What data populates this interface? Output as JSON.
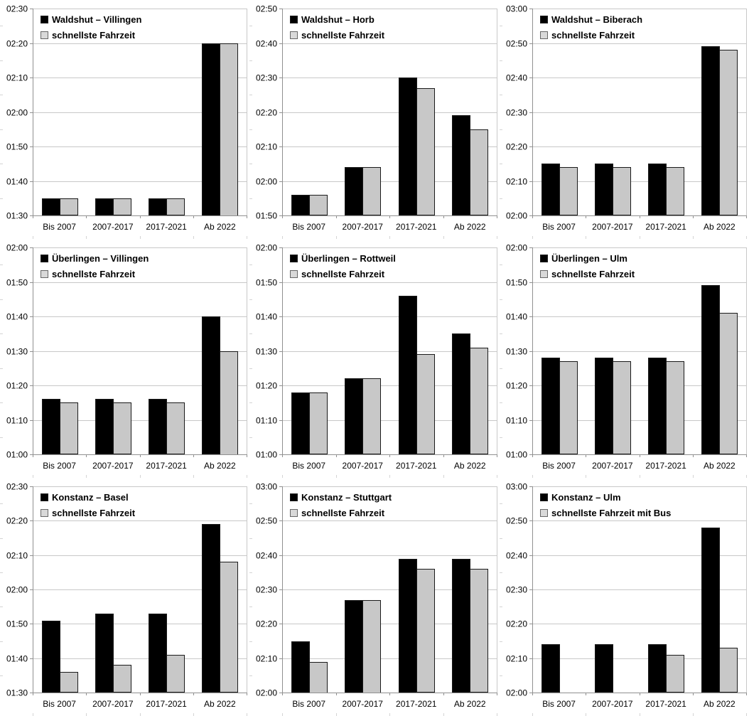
{
  "page": {
    "description": "3x3 grid of bar charts comparing scheduled vs fastest rail travel times (hh:mm) between city pairs across four timetable periods"
  },
  "style": {
    "background": "#ffffff",
    "bar_black": "#000000",
    "bar_gray": "#c8c8c8",
    "bar_border": "#1a1a1a",
    "grid_line": "#c8c8c8",
    "frame_line": "#c8c8c8",
    "axis_line": "#909090",
    "edge_mark": "#d4d4d4",
    "legend_symbol_black": "#000000",
    "legend_symbol_gray": "#d9d9d9",
    "legend_symbol_border": "#666666",
    "text_color": "#000000"
  },
  "chart_data": [
    {
      "type": "bar",
      "title": "Waldshut – Villingen",
      "categories": [
        "Bis 2007",
        "2007-2017",
        "2017-2021",
        "Ab 2022"
      ],
      "series": [
        {
          "name": "Waldshut – Villingen",
          "values": [
            "01:35",
            "01:35",
            "01:35",
            "02:20"
          ]
        },
        {
          "name": "schnellste Fahrzeit",
          "values": [
            "01:35",
            "01:35",
            "01:35",
            "02:20"
          ]
        }
      ],
      "ylim": [
        "01:30",
        "02:30"
      ],
      "y_major_interval_minutes": 10,
      "y_minor_interval_minutes": 5,
      "grid": "horizontal",
      "legend_position": "top-left-inside"
    },
    {
      "type": "bar",
      "title": "Waldshut – Horb",
      "categories": [
        "Bis 2007",
        "2007-2017",
        "2017-2021",
        "Ab 2022"
      ],
      "series": [
        {
          "name": "Waldshut – Horb",
          "values": [
            "01:56",
            "02:04",
            "02:30",
            "02:19"
          ]
        },
        {
          "name": "schnellste Fahrzeit",
          "values": [
            "01:56",
            "02:04",
            "02:27",
            "02:15"
          ]
        }
      ],
      "ylim": [
        "01:50",
        "02:50"
      ],
      "y_major_interval_minutes": 10,
      "y_minor_interval_minutes": 5,
      "grid": "horizontal",
      "legend_position": "top-left-inside"
    },
    {
      "type": "bar",
      "title": "Waldshut – Biberach",
      "categories": [
        "Bis 2007",
        "2007-2017",
        "2017-2021",
        "Ab 2022"
      ],
      "series": [
        {
          "name": "Waldshut – Biberach",
          "values": [
            "02:15",
            "02:15",
            "02:15",
            "02:49"
          ]
        },
        {
          "name": "schnellste Fahrzeit",
          "values": [
            "02:14",
            "02:14",
            "02:14",
            "02:48"
          ]
        }
      ],
      "ylim": [
        "02:00",
        "03:00"
      ],
      "y_major_interval_minutes": 10,
      "y_minor_interval_minutes": 5,
      "grid": "horizontal",
      "legend_position": "top-left-inside"
    },
    {
      "type": "bar",
      "title": "Überlingen – Villingen",
      "categories": [
        "Bis 2007",
        "2007-2017",
        "2017-2021",
        "Ab 2022"
      ],
      "series": [
        {
          "name": "Überlingen – Villingen",
          "values": [
            "01:16",
            "01:16",
            "01:16",
            "01:40"
          ]
        },
        {
          "name": "schnellste Fahrzeit",
          "values": [
            "01:15",
            "01:15",
            "01:15",
            "01:30"
          ]
        }
      ],
      "ylim": [
        "01:00",
        "02:00"
      ],
      "y_major_interval_minutes": 10,
      "y_minor_interval_minutes": 5,
      "grid": "horizontal",
      "legend_position": "top-left-inside"
    },
    {
      "type": "bar",
      "title": "Überlingen – Rottweil",
      "categories": [
        "Bis 2007",
        "2007-2017",
        "2017-2021",
        "Ab 2022"
      ],
      "series": [
        {
          "name": "Überlingen – Rottweil",
          "values": [
            "01:18",
            "01:22",
            "01:46",
            "01:35"
          ]
        },
        {
          "name": "schnellste Fahrzeit",
          "values": [
            "01:18",
            "01:22",
            "01:29",
            "01:31"
          ]
        }
      ],
      "ylim": [
        "01:00",
        "02:00"
      ],
      "y_major_interval_minutes": 10,
      "y_minor_interval_minutes": 5,
      "grid": "horizontal",
      "legend_position": "top-left-inside"
    },
    {
      "type": "bar",
      "title": "Überlingen – Ulm",
      "categories": [
        "Bis 2007",
        "2007-2017",
        "2017-2021",
        "Ab 2022"
      ],
      "series": [
        {
          "name": "Überlingen – Ulm",
          "values": [
            "01:28",
            "01:28",
            "01:28",
            "01:49"
          ]
        },
        {
          "name": "schnellste Fahrzeit",
          "values": [
            "01:27",
            "01:27",
            "01:27",
            "01:41"
          ]
        }
      ],
      "ylim": [
        "01:00",
        "02:00"
      ],
      "y_major_interval_minutes": 10,
      "y_minor_interval_minutes": 5,
      "grid": "horizontal",
      "legend_position": "top-left-inside"
    },
    {
      "type": "bar",
      "title": "Konstanz – Basel",
      "categories": [
        "Bis 2007",
        "2007-2017",
        "2017-2021",
        "Ab 2022"
      ],
      "series": [
        {
          "name": "Konstanz – Basel",
          "values": [
            "01:51",
            "01:53",
            "01:53",
            "02:19"
          ]
        },
        {
          "name": "schnellste Fahrzeit",
          "values": [
            "01:36",
            "01:38",
            "01:41",
            "02:08"
          ]
        }
      ],
      "ylim": [
        "01:30",
        "02:30"
      ],
      "y_major_interval_minutes": 10,
      "y_minor_interval_minutes": 5,
      "grid": "horizontal",
      "legend_position": "top-left-inside"
    },
    {
      "type": "bar",
      "title": "Konstanz – Stuttgart",
      "categories": [
        "Bis 2007",
        "2007-2017",
        "2017-2021",
        "Ab 2022"
      ],
      "series": [
        {
          "name": "Konstanz – Stuttgart",
          "values": [
            "02:15",
            "02:27",
            "02:39",
            "02:39"
          ]
        },
        {
          "name": "schnellste Fahrzeit",
          "values": [
            "02:09",
            "02:27",
            "02:36",
            "02:36"
          ]
        }
      ],
      "ylim": [
        "02:00",
        "03:00"
      ],
      "y_major_interval_minutes": 10,
      "y_minor_interval_minutes": 5,
      "grid": "horizontal",
      "legend_position": "top-left-inside"
    },
    {
      "type": "bar",
      "title": "Konstanz – Ulm",
      "categories": [
        "Bis 2007",
        "2007-2017",
        "2017-2021",
        "Ab 2022"
      ],
      "series": [
        {
          "name": "Konstanz – Ulm",
          "values": [
            "02:14",
            "02:14",
            "02:14",
            "02:48"
          ]
        },
        {
          "name": "schnellste Fahrzeit mit Bus",
          "values": [
            null,
            null,
            "02:11",
            "02:13"
          ]
        }
      ],
      "ylim": [
        "02:00",
        "03:00"
      ],
      "y_major_interval_minutes": 10,
      "y_minor_interval_minutes": 5,
      "grid": "horizontal",
      "legend_position": "top-left-inside"
    }
  ]
}
